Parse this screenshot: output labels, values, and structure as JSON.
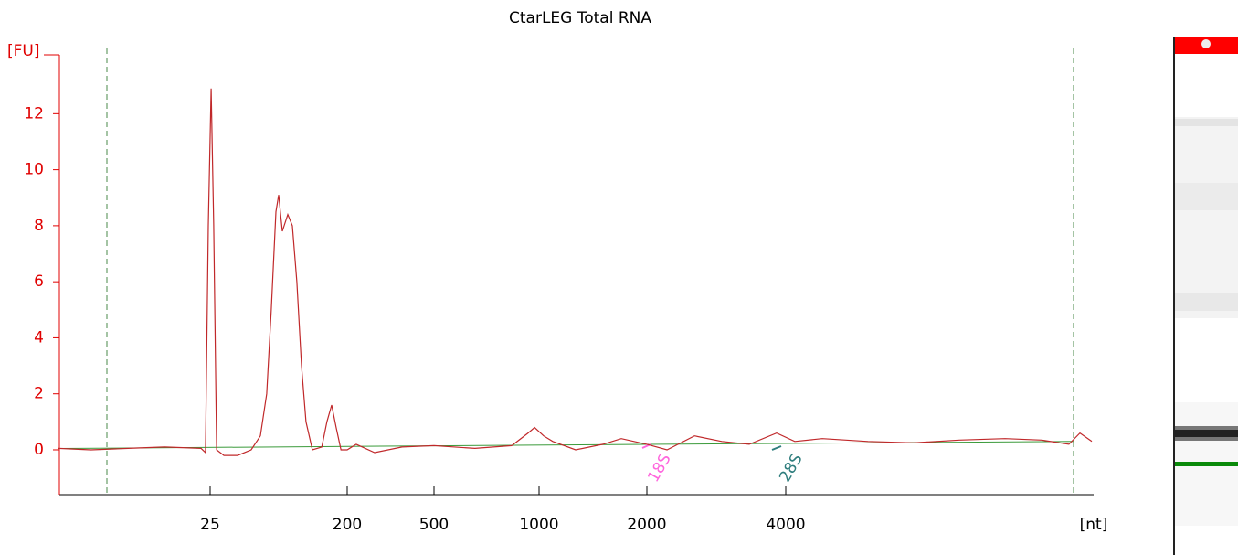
{
  "chart_data": {
    "type": "line",
    "title": "CtarLEG Total RNA",
    "xlabel": "[nt]",
    "ylabel": "[FU]",
    "axis_color": "#e00000",
    "line_color": "#c0282a",
    "x": [
      2.5,
      4.1,
      7.2,
      12.5,
      21.8,
      23.3,
      24.3,
      25.4,
      26.4,
      27.6,
      30.8,
      37.9,
      46.6,
      53.6,
      59.0,
      63.2,
      67.8,
      70.7,
      74.7,
      81.2,
      87.0,
      93.2,
      100,
      107,
      118,
      136,
      147,
      158,
      169,
      182,
      200,
      220,
      267,
      357,
      500,
      655,
      835,
      930,
      971,
      1030,
      1092,
      1265,
      1508,
      1697,
      2000,
      2212,
      2536,
      2907,
      3333,
      3821,
      4185,
      4800,
      6030,
      7575,
      9510,
      11950,
      14340,
      16440,
      17370,
      18430
    ],
    "values": [
      0.05,
      0.0,
      0.05,
      0.1,
      0.05,
      -0.1,
      8,
      12.9,
      8,
      0,
      -0.2,
      -0.2,
      0,
      0.5,
      2,
      5,
      8.5,
      9.1,
      7.8,
      8.4,
      8,
      6,
      3,
      1,
      0,
      0.1,
      1,
      1.6,
      0.8,
      0,
      0,
      0.2,
      -0.1,
      0.1,
      0.15,
      0.05,
      0.15,
      0.6,
      0.8,
      0.5,
      0.3,
      0.0,
      0.2,
      0.4,
      0.2,
      0.0,
      0.5,
      0.3,
      0.2,
      0.6,
      0.3,
      0.4,
      0.3,
      0.25,
      0.35,
      0.4,
      0.35,
      0.2,
      0.6,
      0.3
    ],
    "xticks": [
      25,
      200,
      500,
      1000,
      2000,
      4000
    ],
    "ylim": [
      -1.6,
      14.1
    ],
    "yticks": [
      0,
      2,
      4,
      6,
      8,
      10,
      12
    ],
    "annotations": [
      {
        "text": "18S",
        "color": "#ff66dd"
      },
      {
        "text": "28S",
        "color": "#2e7d7d"
      }
    ]
  }
}
